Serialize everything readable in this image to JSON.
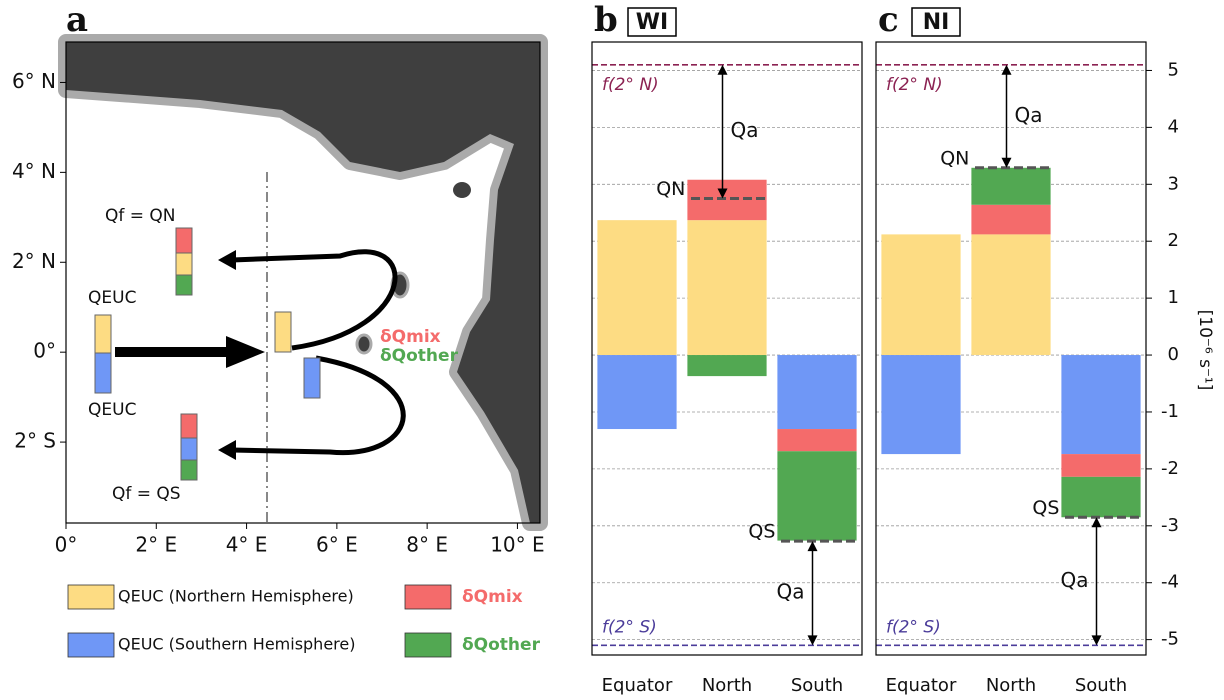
{
  "map": {
    "panel_label": "a",
    "xlim": [
      0,
      10.5
    ],
    "ylim": [
      -3.8,
      6.9
    ],
    "xticks": [
      {
        "value": 0,
        "label": "0°"
      },
      {
        "value": 2,
        "label": "2° E"
      },
      {
        "value": 4,
        "label": "4° E"
      },
      {
        "value": 6,
        "label": "6° E"
      },
      {
        "value": 8,
        "label": "8° E"
      },
      {
        "value": 10,
        "label": "10° E"
      }
    ],
    "yticks": [
      {
        "value": 6,
        "label": "6° N"
      },
      {
        "value": 4,
        "label": "4° N"
      },
      {
        "value": 2,
        "label": "2° N"
      },
      {
        "value": 0,
        "label": "0°"
      },
      {
        "value": -2,
        "label": "2° S"
      }
    ],
    "labels": {
      "qf_north": "Qf = QN",
      "qeuc_north": "QEUC",
      "qeuc_south": "QEUC",
      "qf_south": "Qf = QS",
      "dq_mix": "δQmix",
      "dq_other": "δQother"
    }
  },
  "chart_data": [
    {
      "type": "bar",
      "panel_label": "b",
      "title": "WI",
      "categories": [
        "Equator",
        "North",
        "South"
      ],
      "series": [
        {
          "name": "QEUC (Northern Hemisphere)",
          "color": "#fddc83",
          "values": [
            2.37,
            2.37,
            null
          ]
        },
        {
          "name": "QEUC (Southern Hemisphere)",
          "color": "#6f97f6",
          "values": [
            -1.3,
            null,
            -1.3
          ]
        },
        {
          "name": "δQmix",
          "color": "#f46b6b",
          "values": [
            null,
            0.71,
            -0.39
          ]
        },
        {
          "name": "δQother",
          "color": "#52a852",
          "values": [
            null,
            -0.37,
            -1.57
          ]
        }
      ],
      "ylim": [
        -5.27,
        5.5
      ],
      "yticks": [
        -5,
        -4,
        -3,
        -2,
        -1,
        0,
        1,
        2,
        3,
        4,
        5
      ],
      "grid": true,
      "show_ytick_labels": false,
      "reference_lines": [
        {
          "label": "f(2° N)",
          "value": 5.1,
          "color": "#8b2252"
        },
        {
          "label": "f(2° S)",
          "value": -5.1,
          "color": "#4b3c9a"
        }
      ],
      "markers": [
        {
          "label": "QN",
          "value": 2.75,
          "category": "North"
        },
        {
          "label": "QS",
          "value": -3.27,
          "category": "South"
        }
      ],
      "arrow_label": "Qa"
    },
    {
      "type": "bar",
      "panel_label": "c",
      "title": "NI",
      "categories": [
        "Equator",
        "North",
        "South"
      ],
      "series": [
        {
          "name": "QEUC (Northern Hemisphere)",
          "color": "#fddc83",
          "values": [
            2.12,
            2.12,
            null
          ]
        },
        {
          "name": "QEUC (Southern Hemisphere)",
          "color": "#6f97f6",
          "values": [
            -1.74,
            null,
            -1.74
          ]
        },
        {
          "name": "δQmix",
          "color": "#f46b6b",
          "values": [
            null,
            0.52,
            -0.4
          ]
        },
        {
          "name": "δQother",
          "color": "#52a852",
          "values": [
            null,
            0.65,
            -0.71
          ]
        }
      ],
      "ylim": [
        -5.27,
        5.5
      ],
      "yticks": [
        -5,
        -4,
        -3,
        -2,
        -1,
        0,
        1,
        2,
        3,
        4,
        5
      ],
      "grid": true,
      "show_ytick_labels": true,
      "ylabel": "[10⁻⁶ s⁻¹]",
      "reference_lines": [
        {
          "label": "f(2° N)",
          "value": 5.1,
          "color": "#8b2252"
        },
        {
          "label": "f(2° S)",
          "value": -5.1,
          "color": "#4b3c9a"
        }
      ],
      "markers": [
        {
          "label": "QN",
          "value": 3.29,
          "category": "North"
        },
        {
          "label": "QS",
          "value": -2.85,
          "category": "South"
        }
      ],
      "arrow_label": "Qa"
    }
  ]
}
